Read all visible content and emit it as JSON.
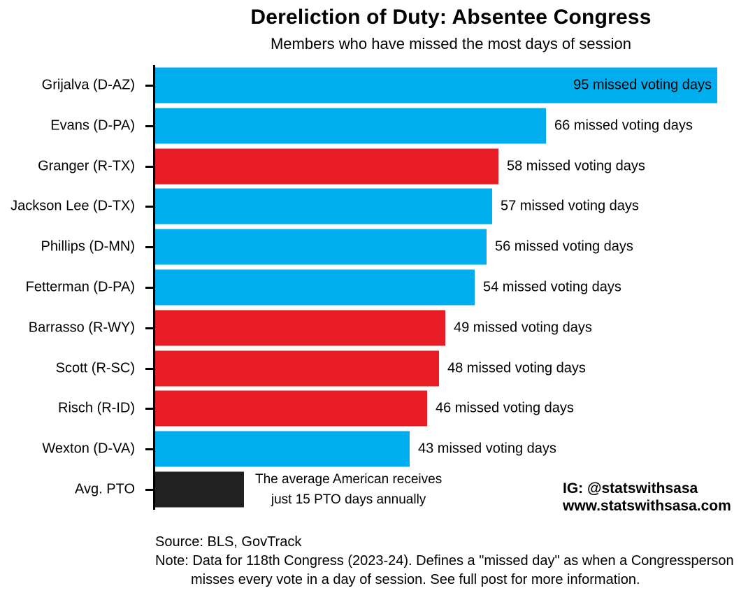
{
  "header": {
    "title": "Dereliction of Duty: Absentee Congress",
    "subtitle": "Members who have missed the most days of session"
  },
  "chart_data": {
    "type": "bar",
    "orientation": "horizontal",
    "x_max": 95,
    "grid": false,
    "legend": "none",
    "colors": {
      "democrat": "#00AEEF",
      "republican": "#E81C24",
      "neutral": "#212121"
    },
    "bars": [
      {
        "label": "Grijalva (D-AZ)",
        "value": 95,
        "party": "democrat",
        "value_label": "95 missed voting days",
        "value_label_placement": "inside"
      },
      {
        "label": "Evans (D-PA)",
        "value": 66,
        "party": "democrat",
        "value_label": "66 missed voting days",
        "value_label_placement": "outside"
      },
      {
        "label": "Granger (R-TX)",
        "value": 58,
        "party": "republican",
        "value_label": "58 missed voting days",
        "value_label_placement": "outside"
      },
      {
        "label": "Jackson Lee (D-TX)",
        "value": 57,
        "party": "democrat",
        "value_label": "57 missed voting days",
        "value_label_placement": "outside"
      },
      {
        "label": "Phillips (D-MN)",
        "value": 56,
        "party": "democrat",
        "value_label": "56 missed voting days",
        "value_label_placement": "outside"
      },
      {
        "label": "Fetterman (D-PA)",
        "value": 54,
        "party": "democrat",
        "value_label": "54 missed voting days",
        "value_label_placement": "outside"
      },
      {
        "label": "Barrasso (R-WY)",
        "value": 49,
        "party": "republican",
        "value_label": "49 missed voting days",
        "value_label_placement": "outside"
      },
      {
        "label": "Scott (R-SC)",
        "value": 48,
        "party": "republican",
        "value_label": "48 missed voting days",
        "value_label_placement": "outside"
      },
      {
        "label": "Risch (R-ID)",
        "value": 46,
        "party": "republican",
        "value_label": "46 missed voting days",
        "value_label_placement": "outside"
      },
      {
        "label": "Wexton (D-VA)",
        "value": 43,
        "party": "democrat",
        "value_label": "43 missed voting days",
        "value_label_placement": "outside"
      },
      {
        "label": "Avg. PTO",
        "value": 15,
        "party": "neutral",
        "annotation_line1": "The average American receives",
        "annotation_line2": "just 15 PTO days annually"
      }
    ]
  },
  "footer": {
    "ig_handle": "IG: @statswithsasa",
    "website": "www.statswithsasa.com",
    "source": "Source: BLS, GovTrack",
    "note_line1": "Note: Data for 118th Congress (2023-24). Defines a \"missed day\" as when a Congressperson",
    "note_line2": "misses every vote in a day of session. See full post for more information."
  }
}
